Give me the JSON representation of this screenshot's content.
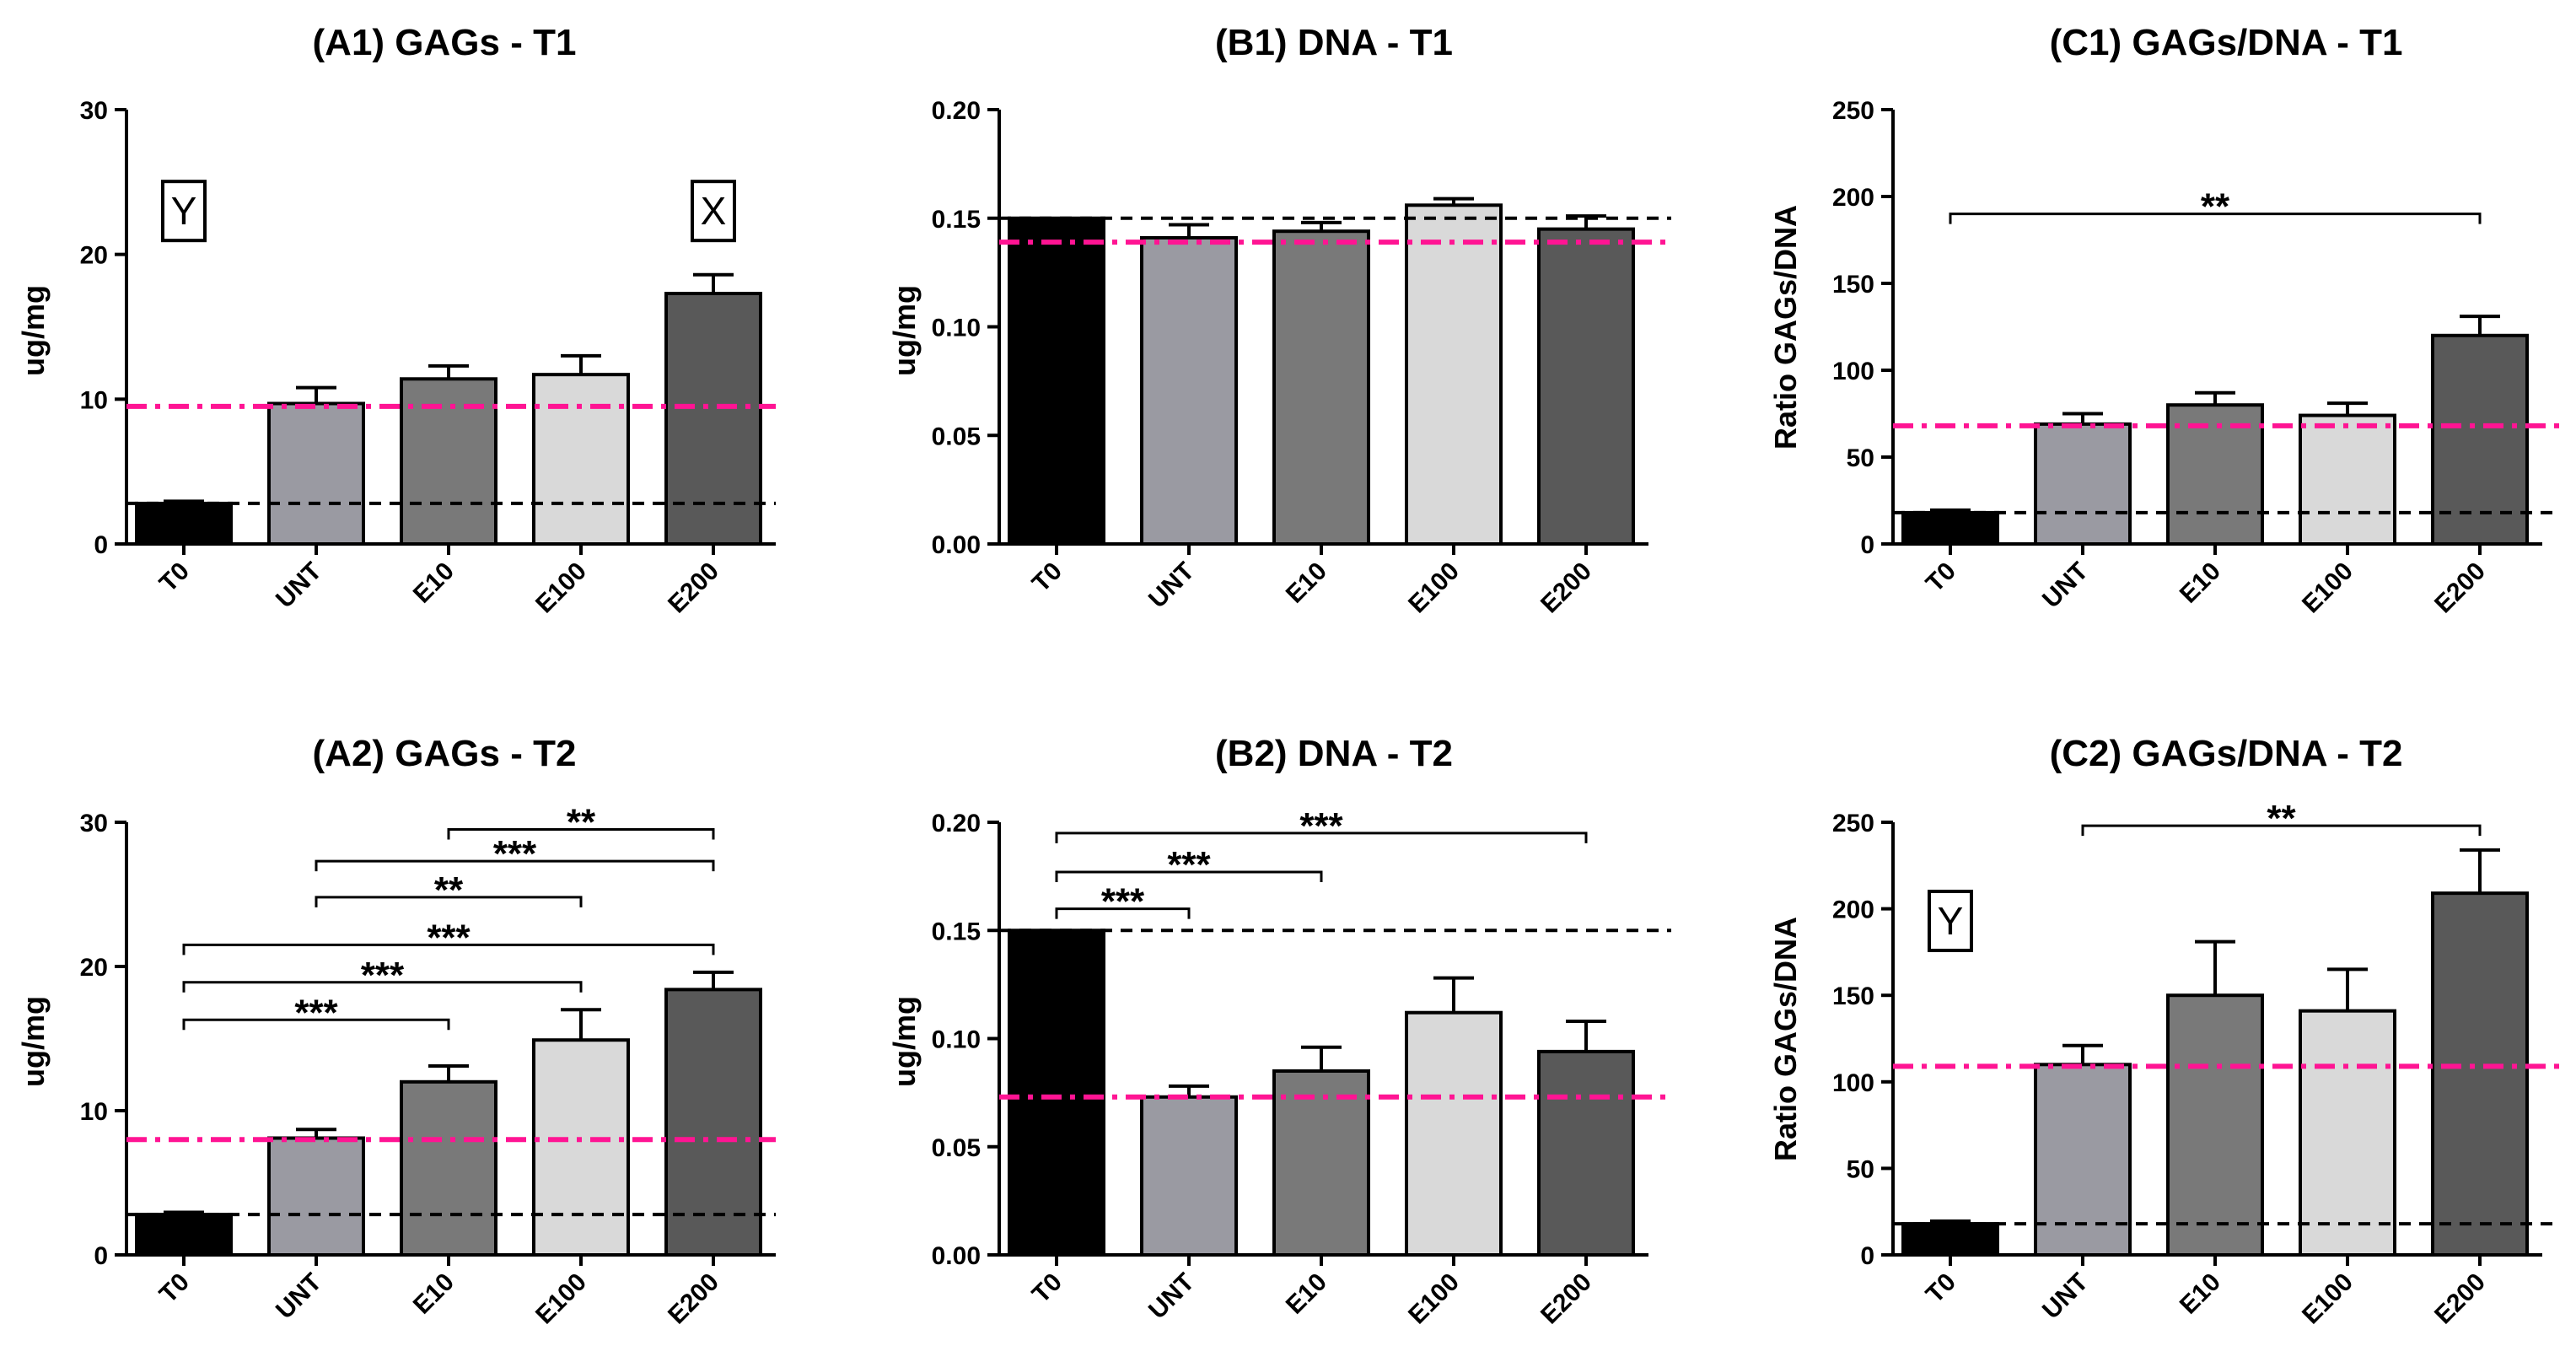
{
  "figure": {
    "category_fills": [
      "#000000",
      "#9a9aa2",
      "#797979",
      "#d9d9d9",
      "#595959"
    ],
    "ref_colors": {
      "black_dash": "#000000",
      "pink_dashdot": "#ff1493"
    }
  },
  "chart_data": [
    {
      "id": "A1",
      "type": "bar",
      "title": "(A1) GAGs - T1",
      "ylabel": "ug/mg",
      "categories": [
        "T0",
        "UNT",
        "E10",
        "E100",
        "E200"
      ],
      "values": [
        2.8,
        9.7,
        11.4,
        11.7,
        17.3
      ],
      "errors": [
        0.15,
        1.1,
        0.9,
        1.3,
        1.3
      ],
      "ylim": [
        0,
        30
      ],
      "yticks": [
        0,
        10,
        20,
        30
      ],
      "ytick_labels": [
        "0",
        "10",
        "20",
        "30"
      ],
      "ref_black": 2.8,
      "ref_pink": 9.5,
      "annotations": [
        {
          "text": "Y",
          "category": "T0",
          "y": 23
        },
        {
          "text": "X",
          "category": "E200",
          "y": 23
        }
      ],
      "brackets": []
    },
    {
      "id": "B1",
      "type": "bar",
      "title": "(B1) DNA - T1",
      "ylabel": "ug/mg",
      "categories": [
        "T0",
        "UNT",
        "E10",
        "E100",
        "E200"
      ],
      "values": [
        0.15,
        0.141,
        0.144,
        0.156,
        0.145
      ],
      "errors": [
        0,
        0.006,
        0.004,
        0.003,
        0.006
      ],
      "ylim": [
        0,
        0.2
      ],
      "yticks": [
        0,
        0.05,
        0.1,
        0.15,
        0.2
      ],
      "ytick_labels": [
        "0.00",
        "0.05",
        "0.10",
        "0.15",
        "0.20"
      ],
      "ref_black": 0.15,
      "ref_pink": 0.139,
      "annotations": [],
      "brackets": []
    },
    {
      "id": "C1",
      "type": "bar",
      "title": "(C1) GAGs/DNA - T1",
      "ylabel": "Ratio GAGs/DNA",
      "categories": [
        "T0",
        "UNT",
        "E10",
        "E100",
        "E200"
      ],
      "values": [
        18,
        69,
        80,
        74,
        120
      ],
      "errors": [
        1.5,
        6,
        7,
        7,
        11
      ],
      "ylim": [
        0,
        250
      ],
      "yticks": [
        0,
        50,
        100,
        150,
        200,
        250
      ],
      "ytick_labels": [
        "0",
        "50",
        "100",
        "150",
        "200",
        "250"
      ],
      "ref_black": 18,
      "ref_pink": 68,
      "annotations": [],
      "brackets": [
        {
          "from": 0,
          "to": 4,
          "y": 190,
          "label": "**"
        }
      ]
    },
    {
      "id": "A2",
      "type": "bar",
      "title": "(A2) GAGs - T2",
      "ylabel": "ug/mg",
      "categories": [
        "T0",
        "UNT",
        "E10",
        "E100",
        "E200"
      ],
      "values": [
        2.8,
        8.1,
        12.0,
        14.9,
        18.4
      ],
      "errors": [
        0.15,
        0.6,
        1.1,
        2.1,
        1.2
      ],
      "ylim": [
        0,
        30
      ],
      "yticks": [
        0,
        10,
        20,
        30
      ],
      "ytick_labels": [
        "0",
        "10",
        "20",
        "30"
      ],
      "ref_black": 2.8,
      "ref_pink": 8.0,
      "annotations": [],
      "brackets": [
        {
          "from": 2,
          "to": 4,
          "y": 29.5,
          "label": "**"
        },
        {
          "from": 1,
          "to": 4,
          "y": 27.3,
          "label": "***"
        },
        {
          "from": 1,
          "to": 3,
          "y": 24.8,
          "label": "**"
        },
        {
          "from": 0,
          "to": 4,
          "y": 21.5,
          "label": "***"
        },
        {
          "from": 0,
          "to": 3,
          "y": 18.9,
          "label": "***"
        },
        {
          "from": 0,
          "to": 2,
          "y": 16.3,
          "label": "***"
        }
      ]
    },
    {
      "id": "B2",
      "type": "bar",
      "title": "(B2) DNA - T2",
      "ylabel": "ug/mg",
      "categories": [
        "T0",
        "UNT",
        "E10",
        "E100",
        "E200"
      ],
      "values": [
        0.15,
        0.073,
        0.085,
        0.112,
        0.094
      ],
      "errors": [
        0,
        0.005,
        0.011,
        0.016,
        0.014
      ],
      "ylim": [
        0,
        0.2
      ],
      "yticks": [
        0,
        0.05,
        0.1,
        0.15,
        0.2
      ],
      "ytick_labels": [
        "0.00",
        "0.05",
        "0.10",
        "0.15",
        "0.20"
      ],
      "ref_black": 0.15,
      "ref_pink": 0.073,
      "annotations": [],
      "brackets": [
        {
          "from": 0,
          "to": 4,
          "y": 0.195,
          "label": "***"
        },
        {
          "from": 0,
          "to": 2,
          "y": 0.177,
          "label": "***"
        },
        {
          "from": 0,
          "to": 1,
          "y": 0.16,
          "label": "***"
        }
      ]
    },
    {
      "id": "C2",
      "type": "bar",
      "title": "(C2) GAGs/DNA - T2",
      "ylabel": "Ratio GAGs/DNA",
      "categories": [
        "T0",
        "UNT",
        "E10",
        "E100",
        "E200"
      ],
      "values": [
        18,
        110,
        150,
        141,
        209
      ],
      "errors": [
        1.5,
        11,
        31,
        24,
        25
      ],
      "ylim": [
        0,
        250
      ],
      "yticks": [
        0,
        50,
        100,
        150,
        200,
        250
      ],
      "ytick_labels": [
        "0",
        "50",
        "100",
        "150",
        "200",
        "250"
      ],
      "ref_black": 18,
      "ref_pink": 109,
      "annotations": [
        {
          "text": "Y",
          "category": "T0",
          "y": 193
        }
      ],
      "brackets": [
        {
          "from": 1,
          "to": 4,
          "y": 248,
          "label": "**"
        }
      ]
    }
  ]
}
